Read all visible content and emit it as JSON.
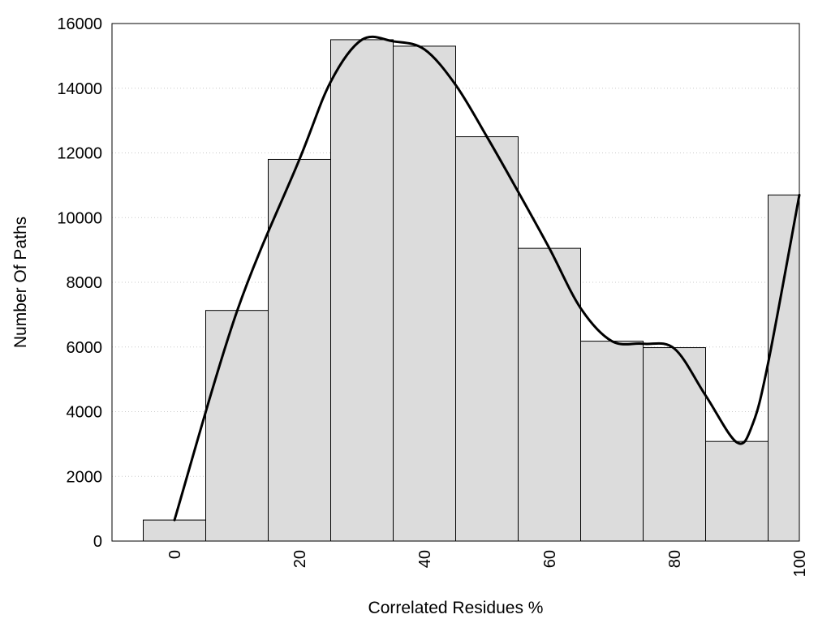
{
  "chart_data": {
    "type": "bar",
    "title": "",
    "xlabel": "Correlated Residues %",
    "ylabel": "Number Of Paths",
    "categories": [
      0,
      10,
      20,
      30,
      40,
      50,
      60,
      70,
      80,
      90,
      100
    ],
    "values": [
      650,
      7130,
      11800,
      15500,
      15300,
      12500,
      9050,
      6180,
      5980,
      3080,
      10700
    ],
    "bin_width": 10,
    "xlim": [
      -10,
      100
    ],
    "ylim": [
      0,
      16000
    ],
    "x_ticks": [
      0,
      20,
      40,
      60,
      80,
      100
    ],
    "y_ticks": [
      0,
      2000,
      4000,
      6000,
      8000,
      10000,
      12000,
      14000,
      16000
    ],
    "grid": "horizontal dotted",
    "bar_color": "#dcdcdc",
    "edge_color": "#000000",
    "curve": {
      "x": [
        0,
        10,
        20,
        25,
        30,
        35,
        40,
        45,
        50,
        55,
        60,
        65,
        70,
        75,
        80,
        85,
        90,
        92.5,
        95,
        100
      ],
      "y": [
        650,
        7100,
        11800,
        14200,
        15500,
        15450,
        15200,
        14100,
        12500,
        10800,
        9050,
        7200,
        6180,
        6100,
        5950,
        4500,
        3050,
        3600,
        5500,
        10700
      ]
    }
  }
}
